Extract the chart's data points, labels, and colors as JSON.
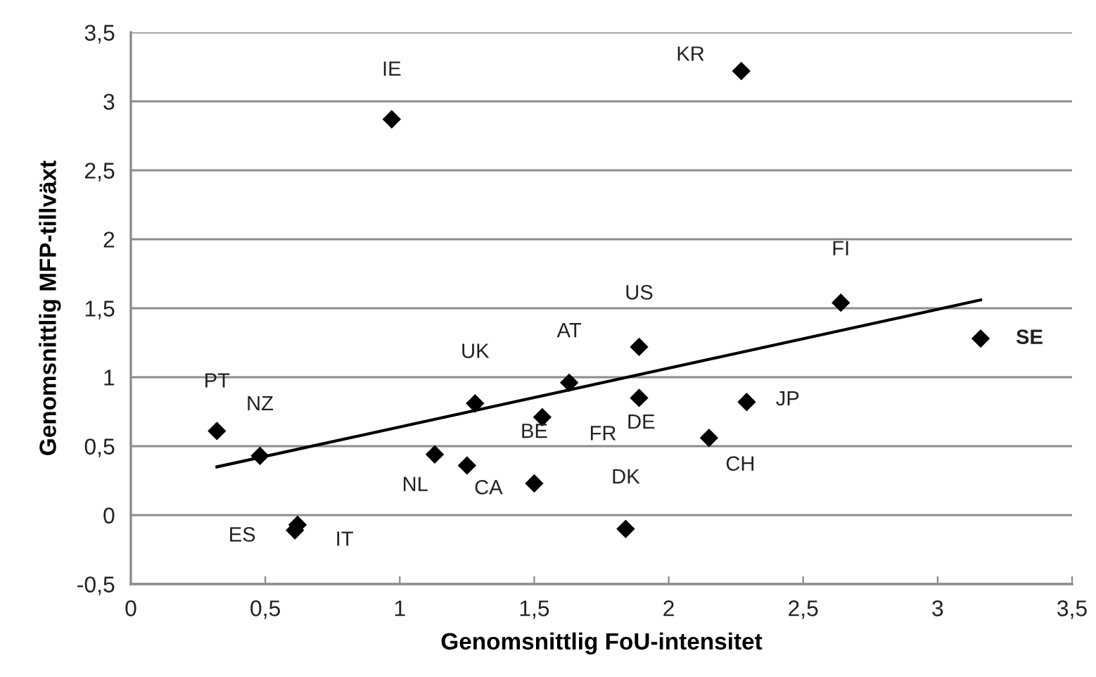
{
  "chart_data": {
    "type": "scatter",
    "xlabel": "Genomsnittlig FoU-intensitet",
    "ylabel": "Genomsnittlig MFP-tillväxt",
    "xlim": [
      0,
      3.5
    ],
    "xticks": [
      {
        "value": 0,
        "label": "0"
      },
      {
        "value": 0.5,
        "label": "0,5"
      },
      {
        "value": 1,
        "label": "1"
      },
      {
        "value": 1.5,
        "label": "1,5"
      },
      {
        "value": 2,
        "label": "2"
      },
      {
        "value": 2.5,
        "label": "2,5"
      },
      {
        "value": 3,
        "label": "3"
      },
      {
        "value": 3.5,
        "label": "3,5"
      }
    ],
    "ylim": [
      -0.5,
      3.5
    ],
    "yticks": [
      {
        "value": -0.5,
        "label": "-0,5"
      },
      {
        "value": 0,
        "label": "0"
      },
      {
        "value": 0.5,
        "label": "0,5"
      },
      {
        "value": 1,
        "label": "1"
      },
      {
        "value": 1.5,
        "label": "1,5"
      },
      {
        "value": 2,
        "label": "2"
      },
      {
        "value": 2.5,
        "label": "2,5"
      },
      {
        "value": 3,
        "label": "3"
      },
      {
        "value": 3.5,
        "label": "3,5"
      }
    ],
    "grid": "y",
    "series": [
      {
        "marker": "diamond",
        "color": "#000000",
        "x": [
          0.32,
          0.48,
          0.61,
          0.62,
          0.97,
          1.13,
          1.25,
          1.28,
          1.5,
          1.53,
          1.63,
          1.84,
          1.89,
          1.89,
          2.15,
          2.27,
          2.29,
          2.64,
          3.16
        ],
        "values": [
          0.61,
          0.43,
          -0.11,
          -0.07,
          2.87,
          0.44,
          0.36,
          0.81,
          0.23,
          0.71,
          0.96,
          -0.1,
          1.22,
          0.85,
          0.56,
          3.22,
          0.82,
          1.54,
          1.28
        ]
      },
      {
        "type": "line",
        "color": "#000000",
        "x": [
          0.32,
          3.16
        ],
        "values": [
          0.35,
          1.56
        ]
      }
    ],
    "annotations": [
      {
        "text": "PT",
        "x": 0.32,
        "y": 0.61
      },
      {
        "text": "NZ",
        "x": 0.48,
        "y": 0.43
      },
      {
        "text": "ES",
        "x": 0.61,
        "y": -0.11
      },
      {
        "text": "IT",
        "x": 0.62,
        "y": -0.07
      },
      {
        "text": "IE",
        "x": 0.97,
        "y": 2.87
      },
      {
        "text": "NL",
        "x": 1.13,
        "y": 0.44
      },
      {
        "text": "CA",
        "x": 1.25,
        "y": 0.36
      },
      {
        "text": "UK",
        "x": 1.28,
        "y": 0.81
      },
      {
        "text": "BE",
        "x": 1.5,
        "y": 0.23
      },
      {
        "text": "FR",
        "x": 1.53,
        "y": 0.71
      },
      {
        "text": "AT",
        "x": 1.63,
        "y": 0.96
      },
      {
        "text": "DK",
        "x": 1.84,
        "y": -0.1
      },
      {
        "text": "US",
        "x": 1.89,
        "y": 1.22
      },
      {
        "text": "DE",
        "x": 1.89,
        "y": 0.85
      },
      {
        "text": "CH",
        "x": 2.15,
        "y": 0.56
      },
      {
        "text": "KR",
        "x": 2.27,
        "y": 3.22
      },
      {
        "text": "JP",
        "x": 2.29,
        "y": 0.82
      },
      {
        "text": "FI",
        "x": 2.64,
        "y": 1.54
      },
      {
        "text": "SE",
        "x": 3.16,
        "y": 1.28
      }
    ]
  }
}
